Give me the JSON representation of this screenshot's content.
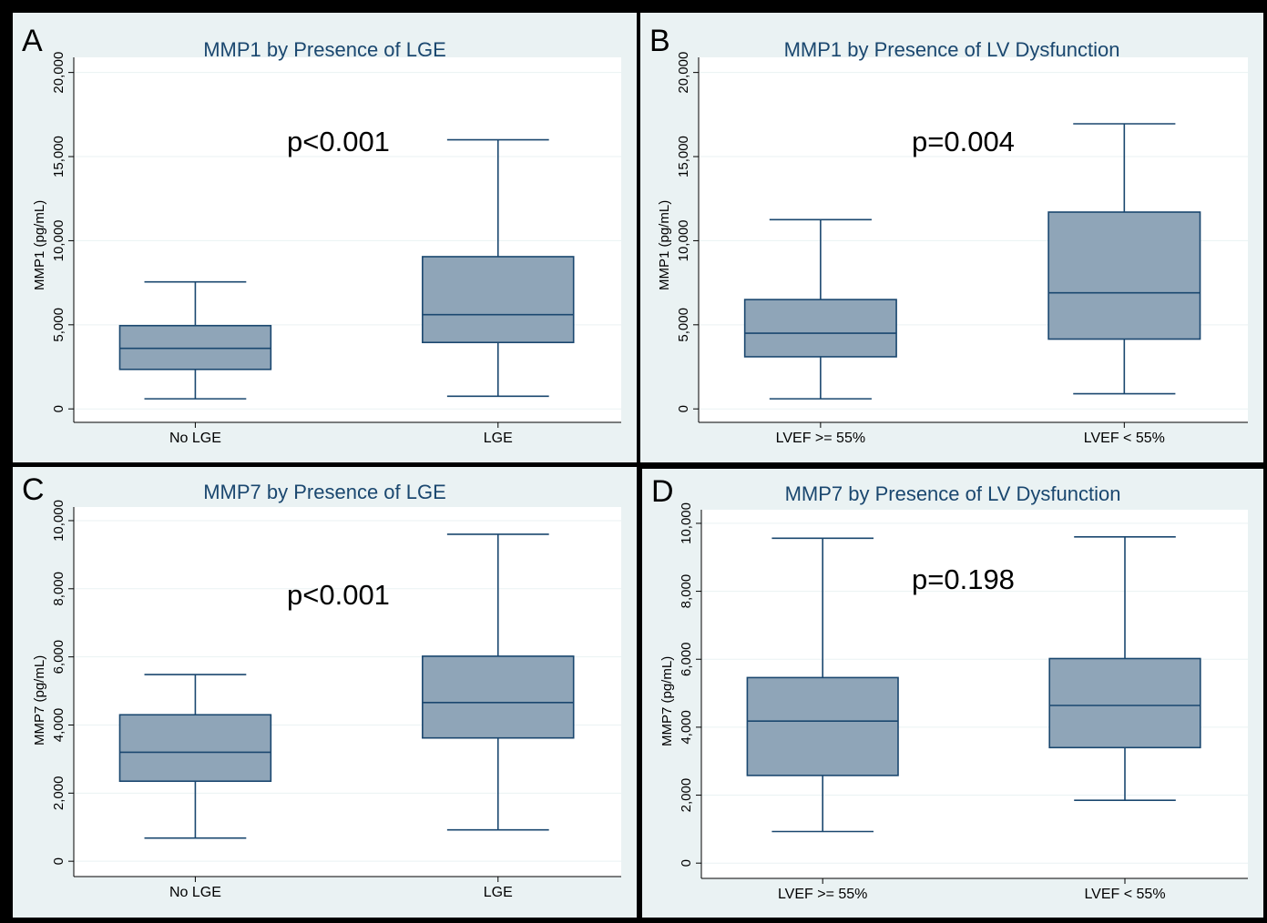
{
  "colors": {
    "box_fill": "#8fa5b8",
    "box_stroke": "#1a476f",
    "plot_bg": "#ffffff",
    "panel_bg": "#eaf2f3",
    "grid": "#eaf2f3",
    "title": "#1a476f"
  },
  "panels": [
    {
      "letter": "A",
      "title": "MMP1 by Presence of LGE",
      "p_value": "p<0.001",
      "ylabel": "MMP1 (pg/mL)"
    },
    {
      "letter": "B",
      "title": "MMP1 by Presence of LV Dysfunction",
      "p_value": "p=0.004",
      "ylabel": "MMP1 (pg/mL)"
    },
    {
      "letter": "C",
      "title": "MMP7 by Presence of LGE",
      "p_value": "p<0.001",
      "ylabel": "MMP7 (pg/mL)"
    },
    {
      "letter": "D",
      "title": "MMP7 by Presence of LV Dysfunction",
      "p_value": "p=0.198",
      "ylabel": "MMP7 (pg/mL)"
    }
  ],
  "chart_data": [
    {
      "type": "box",
      "title": "MMP1 by Presence of LGE",
      "ylabel": "MMP1 (pg/mL)",
      "ylim": [
        -800,
        20900
      ],
      "yticks": [
        0,
        5000,
        10000,
        15000,
        20000
      ],
      "ytick_labels": [
        "0",
        "5,000",
        "10,000",
        "15,000",
        "20,000"
      ],
      "categories": [
        "No LGE",
        "LGE"
      ],
      "boxes": [
        {
          "min": 600,
          "q1": 2350,
          "median": 3600,
          "q3": 4950,
          "max": 7550
        },
        {
          "min": 750,
          "q1": 3950,
          "median": 5600,
          "q3": 9050,
          "max": 16000
        }
      ],
      "annotation": "p<0.001"
    },
    {
      "type": "box",
      "title": "MMP1 by Presence of LV Dysfunction",
      "ylabel": "MMP1 (pg/mL)",
      "ylim": [
        -800,
        20900
      ],
      "yticks": [
        0,
        5000,
        10000,
        15000,
        20000
      ],
      "ytick_labels": [
        "0",
        "5,000",
        "10,000",
        "15,000",
        "20,000"
      ],
      "categories": [
        "LVEF >= 55%",
        "LVEF < 55%"
      ],
      "boxes": [
        {
          "min": 600,
          "q1": 3100,
          "median": 4500,
          "q3": 6500,
          "max": 11250
        },
        {
          "min": 900,
          "q1": 4150,
          "median": 6900,
          "q3": 11700,
          "max": 16950
        }
      ],
      "annotation": "p=0.004"
    },
    {
      "type": "box",
      "title": "MMP7 by Presence of LGE",
      "ylabel": "MMP7 (pg/mL)",
      "ylim": [
        -450,
        10400
      ],
      "yticks": [
        0,
        2000,
        4000,
        6000,
        8000,
        10000
      ],
      "ytick_labels": [
        "0",
        "2,000",
        "4,000",
        "6,000",
        "8,000",
        "10,000"
      ],
      "categories": [
        "No LGE",
        "LGE"
      ],
      "boxes": [
        {
          "min": 680,
          "q1": 2350,
          "median": 3200,
          "q3": 4300,
          "max": 5480
        },
        {
          "min": 920,
          "q1": 3620,
          "median": 4660,
          "q3": 6020,
          "max": 9600
        }
      ],
      "annotation": "p<0.001"
    },
    {
      "type": "box",
      "title": "MMP7 by Presence of LV Dysfunction",
      "ylabel": "MMP7 (pg/mL)",
      "ylim": [
        -450,
        10400
      ],
      "yticks": [
        0,
        2000,
        4000,
        6000,
        8000,
        10000
      ],
      "ytick_labels": [
        "0",
        "2,000",
        "4,000",
        "6,000",
        "8,000",
        "10,000"
      ],
      "categories": [
        "LVEF >= 55%",
        "LVEF < 55%"
      ],
      "boxes": [
        {
          "min": 930,
          "q1": 2580,
          "median": 4180,
          "q3": 5460,
          "max": 9560
        },
        {
          "min": 1850,
          "q1": 3400,
          "median": 4640,
          "q3": 6020,
          "max": 9600
        }
      ],
      "annotation": "p=0.198"
    }
  ]
}
